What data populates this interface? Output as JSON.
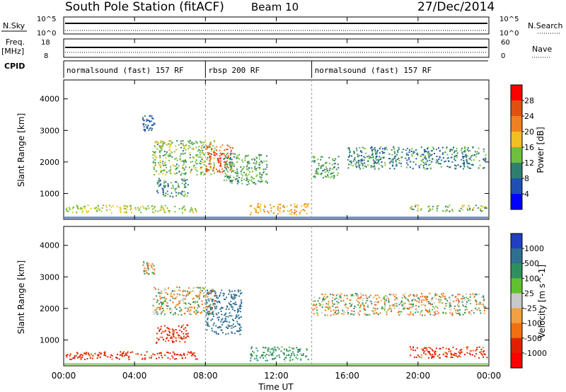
{
  "header": {
    "station": "South Pole Station (fitACF)",
    "beam": "Beam 10",
    "date": "27/Dec/2014"
  },
  "top_panels": {
    "nsky_label": "N.Sky",
    "nsky_ticks": [
      "10^5",
      "10^0"
    ],
    "nsearch_label": "N.Search",
    "freq_label_line1": "Freq.",
    "freq_label_line2": "[MHz]",
    "freq_ticks": [
      "18",
      "8"
    ],
    "nave_label": "Nave",
    "nave_ticks": [
      "60",
      "0"
    ],
    "cpid_label": "CPID",
    "cpid_segments": [
      {
        "label": "normalsound (fast) 157 RF",
        "start_hour": 0,
        "end_hour": 8
      },
      {
        "label": "rbsp 200 RF",
        "start_hour": 8,
        "end_hour": 14
      },
      {
        "label": "normalsound (fast) 157 RF",
        "start_hour": 14,
        "end_hour": 24
      }
    ]
  },
  "chart_data": [
    {
      "type": "heatmap",
      "title": "Power",
      "ylabel": "Slant Range [km]",
      "xlabel": "",
      "ylim": [
        180,
        4600
      ],
      "y_ticks": [
        1000,
        2000,
        3000,
        4000
      ],
      "colorbar_label": "Power [dB]",
      "colorbar_ticks": [
        "4",
        "8",
        "12",
        "16",
        "20",
        "24",
        "28"
      ],
      "colorbar_colors": [
        "#0000ff",
        "#1f4fb0",
        "#2f7f6f",
        "#6fbf3f",
        "#f0c020",
        "#f08020",
        "#e05010",
        "#ff0000"
      ],
      "regions": [
        {
          "x0": 0.1,
          "x1": 7.5,
          "y0": 400,
          "y1": 650,
          "level": 16
        },
        {
          "x0": 10.5,
          "x1": 13.8,
          "y0": 350,
          "y1": 700,
          "level": 20
        },
        {
          "x0": 19.5,
          "x1": 23.9,
          "y0": 450,
          "y1": 650,
          "level": 14
        },
        {
          "x0": 5.0,
          "x1": 8.5,
          "y0": 1600,
          "y1": 2700,
          "level": 14
        },
        {
          "x0": 8.0,
          "x1": 9.5,
          "y0": 1700,
          "y1": 2600,
          "level": 26
        },
        {
          "x0": 9.0,
          "x1": 11.5,
          "y0": 1300,
          "y1": 2300,
          "level": 12
        },
        {
          "x0": 14.0,
          "x1": 15.5,
          "y0": 1500,
          "y1": 2200,
          "level": 12
        },
        {
          "x0": 16.0,
          "x1": 23.8,
          "y0": 1800,
          "y1": 2500,
          "level": 10
        },
        {
          "x0": 5.2,
          "x1": 7.0,
          "y0": 900,
          "y1": 1500,
          "level": 10
        },
        {
          "x0": 4.4,
          "x1": 5.1,
          "y0": 3000,
          "y1": 3500,
          "level": 8
        }
      ]
    },
    {
      "type": "heatmap",
      "title": "Velocity",
      "ylabel": "Slant Range [km]",
      "xlabel": "Time UT",
      "ylim": [
        180,
        4600
      ],
      "y_ticks": [
        1000,
        2000,
        3000,
        4000
      ],
      "x_ticks": [
        "00:00",
        "04:00",
        "08:00",
        "12:00",
        "16:00",
        "20:00",
        "00:00"
      ],
      "colorbar_label": "Velocity [m s^-1]",
      "colorbar_ticks": [
        "1000",
        "500",
        "100",
        "25",
        "-25",
        "-100",
        "-500",
        "-1000"
      ],
      "colorbar_colors": [
        "#2040c0",
        "#2f6f8f",
        "#2f8f5f",
        "#60c030",
        "#c8c8c8",
        "#f0a040",
        "#f07010",
        "#e02000",
        "#ff0000"
      ],
      "regions": [
        {
          "x0": 0.1,
          "x1": 7.5,
          "y0": 400,
          "y1": 650,
          "level": -400
        },
        {
          "x0": 10.5,
          "x1": 13.8,
          "y0": 350,
          "y1": 800,
          "level": 150
        },
        {
          "x0": 19.5,
          "x1": 23.9,
          "y0": 450,
          "y1": 800,
          "level": -400
        },
        {
          "x0": 5.0,
          "x1": 8.5,
          "y0": 1800,
          "y1": 2700,
          "level": 0
        },
        {
          "x0": 8.0,
          "x1": 10.0,
          "y0": 1200,
          "y1": 2600,
          "level": 600
        },
        {
          "x0": 14.0,
          "x1": 23.8,
          "y0": 1800,
          "y1": 2500,
          "level": 0
        },
        {
          "x0": 5.2,
          "x1": 7.0,
          "y0": 900,
          "y1": 1500,
          "level": -400
        },
        {
          "x0": 4.4,
          "x1": 5.1,
          "y0": 3100,
          "y1": 3500,
          "level": 0
        }
      ]
    }
  ]
}
